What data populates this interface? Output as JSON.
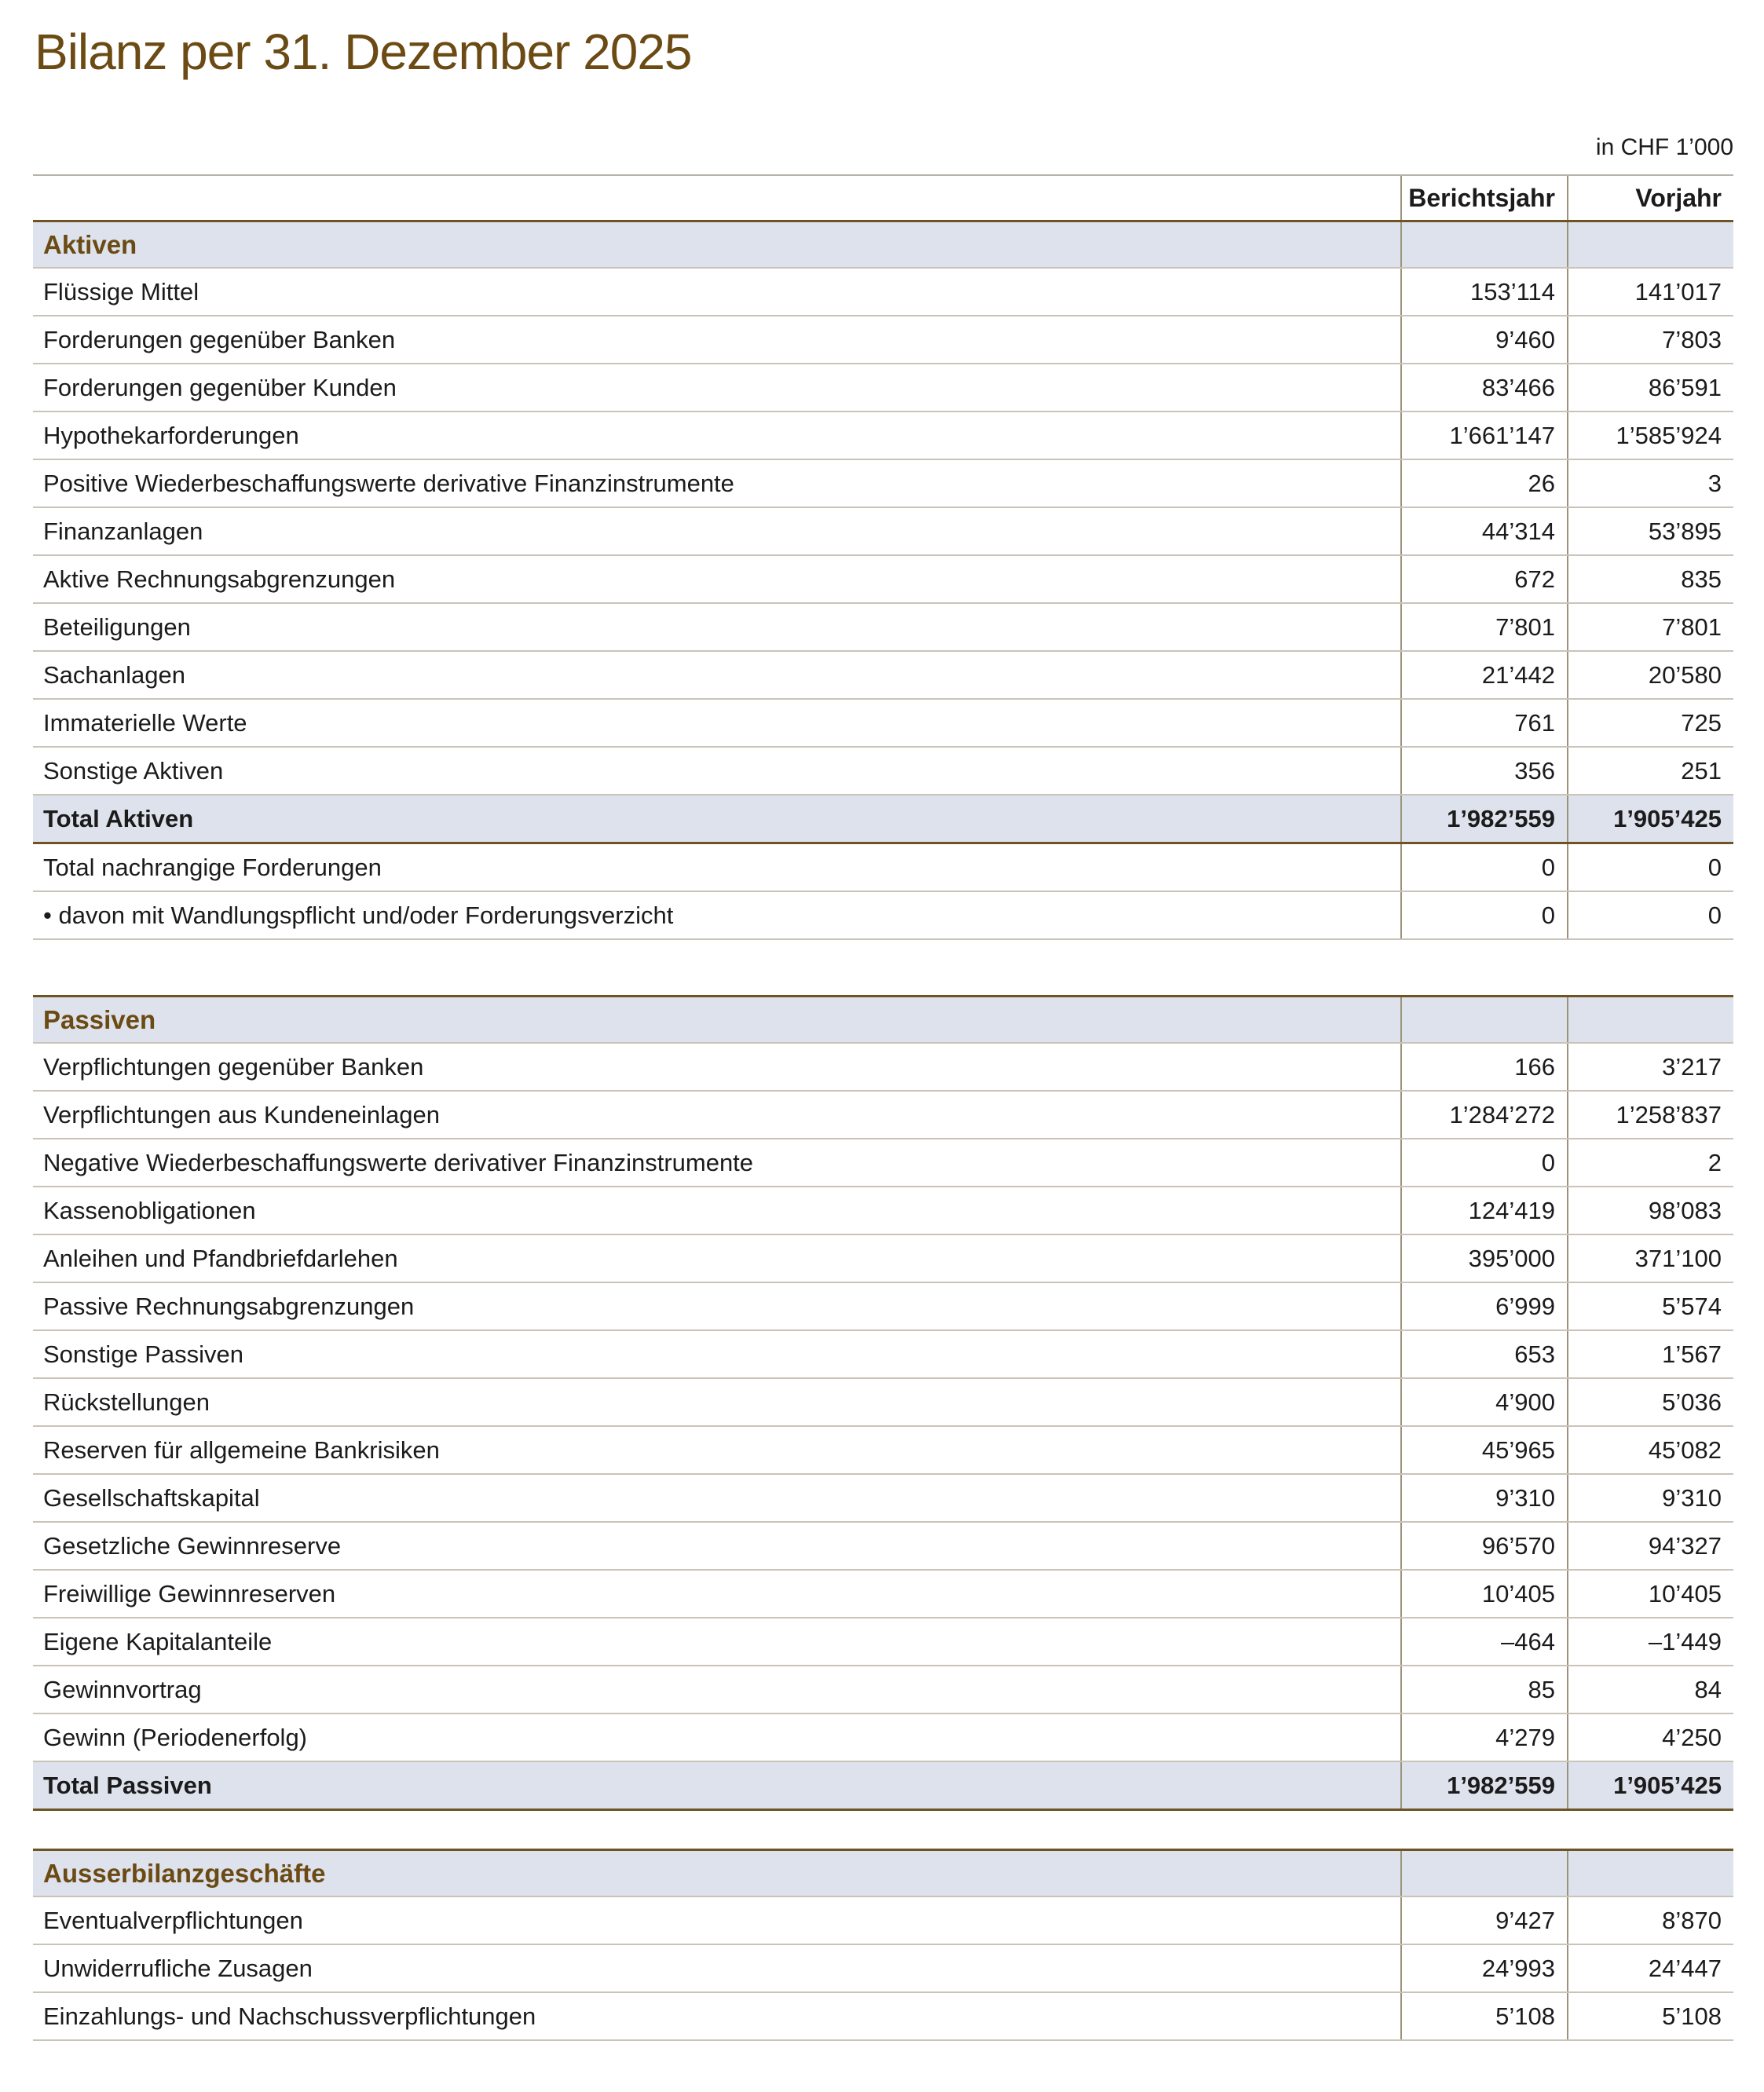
{
  "page_title": "Bilanz per 31. Dezember 2025",
  "unit_note": "in CHF 1’000",
  "columns": [
    "Berichtsjahr",
    "Vorjahr"
  ],
  "colors": {
    "accent_brown": "#6b4a13",
    "band_background": "#dde2ec",
    "thick_rule_brown": "#6e5424",
    "thin_rule": "#c9c3b9",
    "column_rule": "#9e907b"
  },
  "sections": [
    {
      "title": "Aktiven",
      "rows": [
        {
          "label": "Flüssige Mittel",
          "values": [
            "153’114",
            "141’017"
          ]
        },
        {
          "label": "Forderungen gegenüber Banken",
          "values": [
            "9’460",
            "7’803"
          ]
        },
        {
          "label": "Forderungen gegenüber Kunden",
          "values": [
            "83’466",
            "86’591"
          ]
        },
        {
          "label": "Hypothekarforderungen",
          "values": [
            "1’661’147",
            "1’585’924"
          ]
        },
        {
          "label": "Positive Wiederbeschaffungswerte derivative Finanzinstrumente",
          "values": [
            "26",
            "3"
          ]
        },
        {
          "label": "Finanzanlagen",
          "values": [
            "44’314",
            "53’895"
          ]
        },
        {
          "label": "Aktive Rechnungsabgrenzungen",
          "values": [
            "672",
            "835"
          ]
        },
        {
          "label": "Beteiligungen",
          "values": [
            "7’801",
            "7’801"
          ]
        },
        {
          "label": "Sachanlagen",
          "values": [
            "21’442",
            "20’580"
          ]
        },
        {
          "label": "Immaterielle Werte",
          "values": [
            "761",
            "725"
          ]
        },
        {
          "label": "Sonstige Aktiven",
          "values": [
            "356",
            "251"
          ]
        }
      ],
      "total": {
        "label": "Total Aktiven",
        "values": [
          "1’982’559",
          "1’905’425"
        ]
      },
      "after_total_rows": [
        {
          "label": "Total nachrangige Forderungen",
          "values": [
            "0",
            "0"
          ]
        },
        {
          "label": "• davon mit Wandlungspflicht und/oder Forderungsverzicht",
          "values": [
            "0",
            "0"
          ]
        }
      ]
    },
    {
      "title": "Passiven",
      "rows": [
        {
          "label": "Verpflichtungen gegenüber Banken",
          "values": [
            "166",
            "3’217"
          ]
        },
        {
          "label": "Verpflichtungen aus Kundeneinlagen",
          "values": [
            "1’284’272",
            "1’258’837"
          ]
        },
        {
          "label": "Negative Wiederbeschaffungswerte derivativer Finanzinstrumente",
          "values": [
            "0",
            "2"
          ]
        },
        {
          "label": "Kassenobligationen",
          "values": [
            "124’419",
            "98’083"
          ]
        },
        {
          "label": "Anleihen und Pfandbriefdarlehen",
          "values": [
            "395’000",
            "371’100"
          ]
        },
        {
          "label": "Passive Rechnungsabgrenzungen",
          "values": [
            "6’999",
            "5’574"
          ]
        },
        {
          "label": "Sonstige Passiven",
          "values": [
            "653",
            "1’567"
          ]
        },
        {
          "label": "Rückstellungen",
          "values": [
            "4’900",
            "5’036"
          ]
        },
        {
          "label": "Reserven für allgemeine Bankrisiken",
          "values": [
            "45’965",
            "45’082"
          ]
        },
        {
          "label": "Gesellschaftskapital",
          "values": [
            "9’310",
            "9’310"
          ]
        },
        {
          "label": "Gesetzliche Gewinnreserve",
          "values": [
            "96’570",
            "94’327"
          ]
        },
        {
          "label": "Freiwillige Gewinnreserven",
          "values": [
            "10’405",
            "10’405"
          ]
        },
        {
          "label": "Eigene Kapitalanteile",
          "values": [
            "–464",
            "–1’449"
          ]
        },
        {
          "label": "Gewinnvortrag",
          "values": [
            "85",
            "84"
          ]
        },
        {
          "label": "Gewinn (Periodenerfolg)",
          "values": [
            "4’279",
            "4’250"
          ]
        }
      ],
      "total": {
        "label": "Total Passiven",
        "values": [
          "1’982’559",
          "1’905’425"
        ]
      }
    },
    {
      "title": "Ausserbilanzgeschäfte",
      "rows": [
        {
          "label": "Eventualverpflichtungen",
          "values": [
            "9’427",
            "8’870"
          ]
        },
        {
          "label": "Unwiderrufliche Zusagen",
          "values": [
            "24’993",
            "24’447"
          ]
        },
        {
          "label": "Einzahlungs- und Nachschussverpflichtungen",
          "values": [
            "5’108",
            "5’108"
          ]
        }
      ]
    }
  ]
}
